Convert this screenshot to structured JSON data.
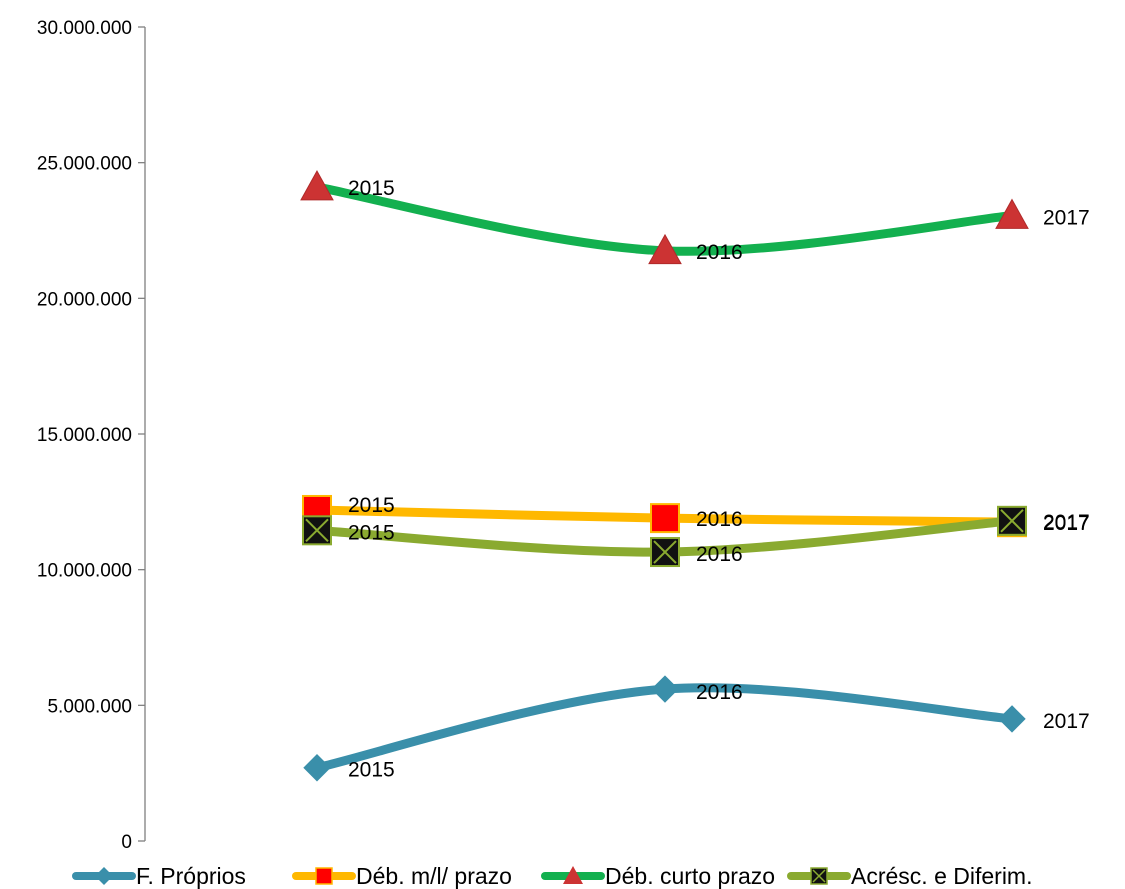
{
  "chart_data": {
    "type": "line",
    "x": [
      "2015",
      "2016",
      "2017"
    ],
    "ylim": [
      0,
      30000000
    ],
    "y_ticks": [
      0,
      5000000,
      10000000,
      15000000,
      20000000,
      25000000,
      30000000
    ],
    "y_tick_labels": [
      "0",
      "5.000.000",
      "10.000.000",
      "15.000.000",
      "20.000.000",
      "25.000.000",
      "30.000.000"
    ],
    "grid": false,
    "legend_position": "bottom",
    "series": [
      {
        "name": "F. Próprios",
        "values": [
          2700000,
          5600000,
          4500000
        ],
        "labels": [
          "2015",
          "2016",
          "2017"
        ],
        "color": "#3A8FAA",
        "marker": "diamond",
        "marker_color": "#3A8FAA"
      },
      {
        "name": "Déb. m/l/ prazo",
        "values": [
          12200000,
          11900000,
          11750000
        ],
        "labels": [
          "2015",
          "2016",
          "2017"
        ],
        "color": "#FFB800",
        "marker": "square",
        "marker_color": "#FF0000"
      },
      {
        "name": "Déb. curto prazo",
        "values": [
          24100000,
          21750000,
          23050000
        ],
        "labels": [
          "2015",
          "2016",
          "2017"
        ],
        "color": "#13B04F",
        "marker": "triangle",
        "marker_color": "#CC3333"
      },
      {
        "name": "Acrésc. e Diferim.",
        "values": [
          11450000,
          10650000,
          11800000
        ],
        "labels": [
          "2015",
          "2016",
          "2017"
        ],
        "color": "#8AAA30",
        "marker": "x-square",
        "marker_color": "#111111"
      }
    ]
  }
}
